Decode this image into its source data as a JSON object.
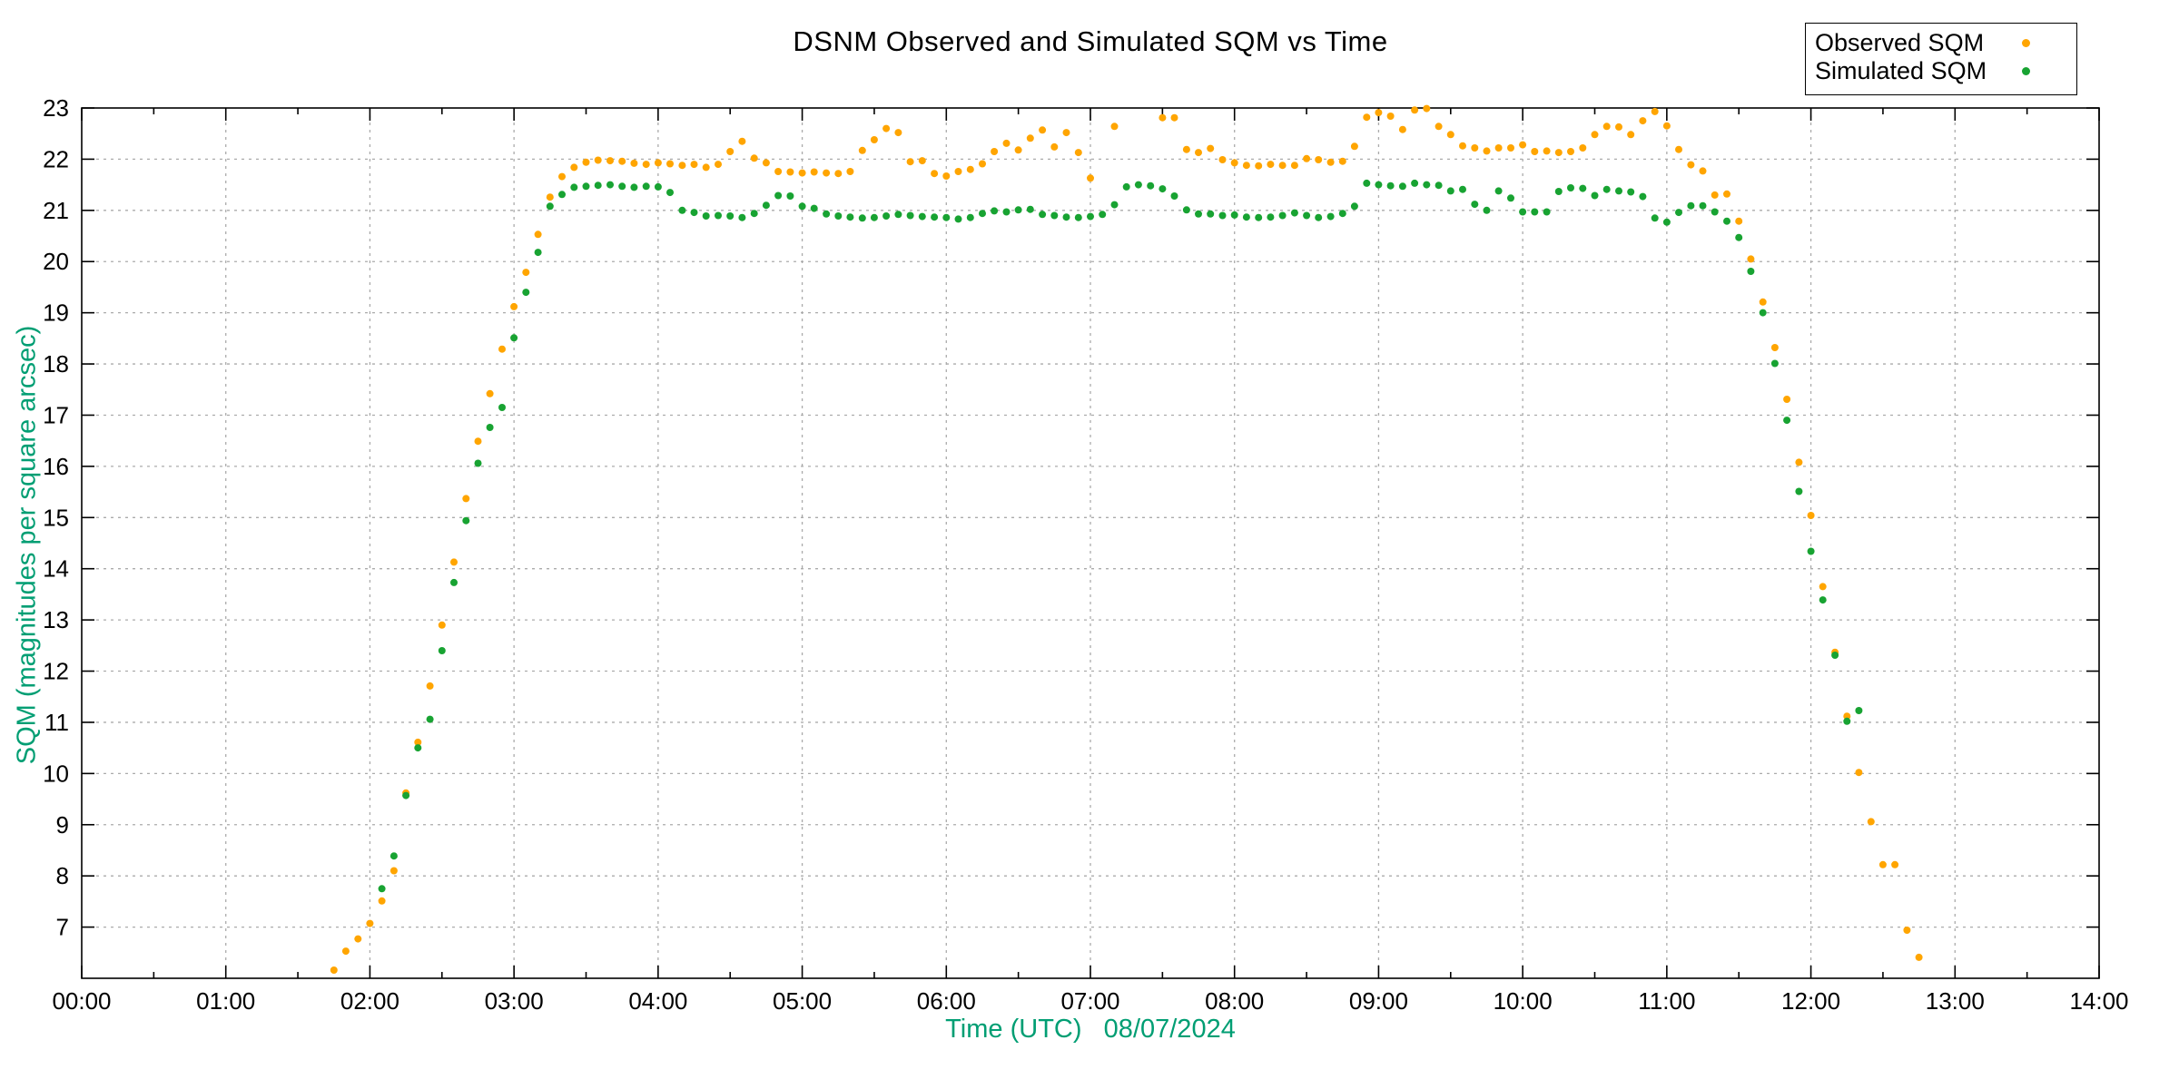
{
  "title": "DSNM Observed and Simulated SQM vs Time",
  "axes": {
    "x_label": "Time (UTC)   08/07/2024",
    "y_label": "SQM (magnitudes per square arcsec)",
    "label_color": "#009E73",
    "x_tick_labels": [
      "00:00",
      "01:00",
      "02:00",
      "03:00",
      "04:00",
      "05:00",
      "06:00",
      "07:00",
      "08:00",
      "09:00",
      "10:00",
      "11:00",
      "12:00",
      "13:00",
      "14:00"
    ],
    "y_tick_labels": [
      7,
      8,
      9,
      10,
      11,
      12,
      13,
      14,
      15,
      16,
      17,
      18,
      19,
      20,
      21,
      22,
      23
    ]
  },
  "legend": {
    "entries": [
      {
        "label": "Observed SQM",
        "color": "#FFA500"
      },
      {
        "label": "Simulated SQM",
        "color": "#18A332"
      }
    ]
  },
  "chart_data": {
    "type": "scatter",
    "title": "DSNM Observed and Simulated SQM vs Time",
    "xlabel": "Time (UTC)   08/07/2024",
    "ylabel": "SQM (magnitudes per square arcsec)",
    "xlim": [
      0,
      14
    ],
    "ylim": [
      6,
      23
    ],
    "x_unit": "hours UTC",
    "grid": true,
    "legend_position": "top-right",
    "grid_color": "#ababab",
    "marker_radius": 4,
    "x_major_tick_hours": 1,
    "x_minor_tick_hours": 0.5,
    "series": [
      {
        "name": "Observed SQM",
        "color": "#FFA500",
        "points": [
          [
            1.75,
            6.16
          ],
          [
            1.833,
            6.53
          ],
          [
            1.917,
            6.77
          ],
          [
            2.0,
            7.07
          ],
          [
            2.083,
            7.51
          ],
          [
            2.167,
            8.1
          ],
          [
            2.25,
            9.62
          ],
          [
            2.333,
            10.61
          ],
          [
            2.417,
            11.71
          ],
          [
            2.5,
            12.9
          ],
          [
            2.583,
            14.13
          ],
          [
            2.667,
            15.37
          ],
          [
            2.75,
            16.49
          ],
          [
            2.833,
            17.42
          ],
          [
            2.917,
            18.29
          ],
          [
            3.0,
            19.12
          ],
          [
            3.083,
            19.79
          ],
          [
            3.167,
            20.53
          ],
          [
            3.25,
            21.26
          ],
          [
            3.333,
            21.66
          ],
          [
            3.417,
            21.84
          ],
          [
            3.5,
            21.94
          ],
          [
            3.583,
            21.98
          ],
          [
            3.667,
            21.97
          ],
          [
            3.75,
            21.96
          ],
          [
            3.833,
            21.92
          ],
          [
            3.917,
            21.9
          ],
          [
            4.0,
            21.93
          ],
          [
            4.083,
            21.91
          ],
          [
            4.167,
            21.88
          ],
          [
            4.25,
            21.9
          ],
          [
            4.333,
            21.84
          ],
          [
            4.417,
            21.9
          ],
          [
            4.5,
            22.15
          ],
          [
            4.583,
            22.35
          ],
          [
            4.667,
            22.02
          ],
          [
            4.75,
            21.93
          ],
          [
            4.833,
            21.76
          ],
          [
            4.917,
            21.75
          ],
          [
            5.0,
            21.73
          ],
          [
            5.083,
            21.75
          ],
          [
            5.167,
            21.73
          ],
          [
            5.25,
            21.72
          ],
          [
            5.333,
            21.76
          ],
          [
            5.417,
            22.17
          ],
          [
            5.5,
            22.38
          ],
          [
            5.583,
            22.6
          ],
          [
            5.667,
            22.52
          ],
          [
            5.75,
            21.95
          ],
          [
            5.833,
            21.97
          ],
          [
            5.917,
            21.72
          ],
          [
            6.0,
            21.67
          ],
          [
            6.083,
            21.76
          ],
          [
            6.167,
            21.8
          ],
          [
            6.25,
            21.91
          ],
          [
            6.333,
            22.15
          ],
          [
            6.417,
            22.31
          ],
          [
            6.5,
            22.18
          ],
          [
            6.583,
            22.41
          ],
          [
            6.667,
            22.57
          ],
          [
            6.75,
            22.24
          ],
          [
            6.833,
            22.52
          ],
          [
            6.917,
            22.13
          ],
          [
            7.0,
            21.63
          ],
          [
            7.167,
            22.64
          ],
          [
            7.5,
            22.81
          ],
          [
            7.583,
            22.81
          ],
          [
            7.667,
            22.19
          ],
          [
            7.75,
            22.13
          ],
          [
            7.833,
            22.21
          ],
          [
            7.917,
            21.99
          ],
          [
            8.0,
            21.93
          ],
          [
            8.083,
            21.88
          ],
          [
            8.167,
            21.87
          ],
          [
            8.25,
            21.9
          ],
          [
            8.333,
            21.88
          ],
          [
            8.417,
            21.88
          ],
          [
            8.5,
            22.01
          ],
          [
            8.583,
            21.99
          ],
          [
            8.667,
            21.94
          ],
          [
            8.75,
            21.96
          ],
          [
            8.833,
            22.25
          ],
          [
            8.917,
            22.82
          ],
          [
            9.0,
            22.91
          ],
          [
            9.083,
            22.84
          ],
          [
            9.167,
            22.58
          ],
          [
            9.25,
            22.96
          ],
          [
            9.333,
            22.99
          ],
          [
            9.417,
            22.64
          ],
          [
            9.5,
            22.48
          ],
          [
            9.583,
            22.26
          ],
          [
            9.667,
            22.22
          ],
          [
            9.75,
            22.16
          ],
          [
            9.833,
            22.22
          ],
          [
            9.917,
            22.22
          ],
          [
            10.0,
            22.28
          ],
          [
            10.083,
            22.15
          ],
          [
            10.167,
            22.16
          ],
          [
            10.25,
            22.13
          ],
          [
            10.333,
            22.15
          ],
          [
            10.417,
            22.22
          ],
          [
            10.5,
            22.48
          ],
          [
            10.583,
            22.64
          ],
          [
            10.667,
            22.63
          ],
          [
            10.75,
            22.48
          ],
          [
            10.833,
            22.75
          ],
          [
            10.917,
            22.93
          ],
          [
            11.0,
            22.65
          ],
          [
            11.083,
            22.19
          ],
          [
            11.167,
            21.89
          ],
          [
            11.25,
            21.77
          ],
          [
            11.333,
            21.3
          ],
          [
            11.417,
            21.32
          ],
          [
            11.5,
            20.79
          ],
          [
            11.583,
            20.05
          ],
          [
            11.667,
            19.21
          ],
          [
            11.75,
            18.32
          ],
          [
            11.833,
            17.31
          ],
          [
            11.917,
            16.08
          ],
          [
            12.0,
            15.04
          ],
          [
            12.083,
            13.65
          ],
          [
            12.167,
            12.37
          ],
          [
            12.25,
            11.12
          ],
          [
            12.333,
            10.02
          ],
          [
            12.417,
            9.06
          ],
          [
            12.5,
            8.22
          ],
          [
            12.583,
            8.22
          ],
          [
            12.667,
            6.94
          ],
          [
            12.75,
            6.41
          ]
        ]
      },
      {
        "name": "Simulated SQM",
        "color": "#18A332",
        "points": [
          [
            2.083,
            7.75
          ],
          [
            2.167,
            8.39
          ],
          [
            2.25,
            9.57
          ],
          [
            2.333,
            10.5
          ],
          [
            2.417,
            11.06
          ],
          [
            2.5,
            12.4
          ],
          [
            2.583,
            13.73
          ],
          [
            2.667,
            14.94
          ],
          [
            2.75,
            16.06
          ],
          [
            2.833,
            16.76
          ],
          [
            2.917,
            17.15
          ],
          [
            3.0,
            18.51
          ],
          [
            3.083,
            19.4
          ],
          [
            3.167,
            20.18
          ],
          [
            3.25,
            21.08
          ],
          [
            3.333,
            21.31
          ],
          [
            3.417,
            21.45
          ],
          [
            3.5,
            21.47
          ],
          [
            3.583,
            21.49
          ],
          [
            3.667,
            21.5
          ],
          [
            3.75,
            21.47
          ],
          [
            3.833,
            21.45
          ],
          [
            3.917,
            21.47
          ],
          [
            4.0,
            21.46
          ],
          [
            4.083,
            21.35
          ],
          [
            4.167,
            21.0
          ],
          [
            4.25,
            20.96
          ],
          [
            4.333,
            20.89
          ],
          [
            4.417,
            20.9
          ],
          [
            4.5,
            20.89
          ],
          [
            4.583,
            20.86
          ],
          [
            4.667,
            20.94
          ],
          [
            4.75,
            21.1
          ],
          [
            4.833,
            21.29
          ],
          [
            4.917,
            21.28
          ],
          [
            5.0,
            21.08
          ],
          [
            5.083,
            21.04
          ],
          [
            5.167,
            20.93
          ],
          [
            5.25,
            20.89
          ],
          [
            5.333,
            20.87
          ],
          [
            5.417,
            20.85
          ],
          [
            5.5,
            20.86
          ],
          [
            5.583,
            20.89
          ],
          [
            5.667,
            20.92
          ],
          [
            5.75,
            20.9
          ],
          [
            5.833,
            20.88
          ],
          [
            5.917,
            20.87
          ],
          [
            6.0,
            20.86
          ],
          [
            6.083,
            20.83
          ],
          [
            6.167,
            20.86
          ],
          [
            6.25,
            20.94
          ],
          [
            6.333,
            20.99
          ],
          [
            6.417,
            20.97
          ],
          [
            6.5,
            21.01
          ],
          [
            6.583,
            21.02
          ],
          [
            6.667,
            20.92
          ],
          [
            6.75,
            20.9
          ],
          [
            6.833,
            20.87
          ],
          [
            6.917,
            20.86
          ],
          [
            7.0,
            20.88
          ],
          [
            7.083,
            20.92
          ],
          [
            7.167,
            21.11
          ],
          [
            7.25,
            21.46
          ],
          [
            7.333,
            21.5
          ],
          [
            7.417,
            21.48
          ],
          [
            7.5,
            21.42
          ],
          [
            7.583,
            21.28
          ],
          [
            7.667,
            21.01
          ],
          [
            7.75,
            20.93
          ],
          [
            7.833,
            20.93
          ],
          [
            7.917,
            20.9
          ],
          [
            8.0,
            20.91
          ],
          [
            8.083,
            20.87
          ],
          [
            8.167,
            20.86
          ],
          [
            8.25,
            20.87
          ],
          [
            8.333,
            20.9
          ],
          [
            8.417,
            20.95
          ],
          [
            8.5,
            20.9
          ],
          [
            8.583,
            20.86
          ],
          [
            8.667,
            20.88
          ],
          [
            8.75,
            20.94
          ],
          [
            8.833,
            21.08
          ],
          [
            8.917,
            21.53
          ],
          [
            9.0,
            21.5
          ],
          [
            9.083,
            21.48
          ],
          [
            9.167,
            21.47
          ],
          [
            9.25,
            21.53
          ],
          [
            9.333,
            21.5
          ],
          [
            9.417,
            21.49
          ],
          [
            9.5,
            21.38
          ],
          [
            9.583,
            21.41
          ],
          [
            9.667,
            21.12
          ],
          [
            9.75,
            21.0
          ],
          [
            9.833,
            21.38
          ],
          [
            9.917,
            21.24
          ],
          [
            10.0,
            20.97
          ],
          [
            10.083,
            20.97
          ],
          [
            10.167,
            20.97
          ],
          [
            10.25,
            21.37
          ],
          [
            10.333,
            21.44
          ],
          [
            10.417,
            21.43
          ],
          [
            10.5,
            21.29
          ],
          [
            10.583,
            21.41
          ],
          [
            10.667,
            21.38
          ],
          [
            10.75,
            21.36
          ],
          [
            10.833,
            21.27
          ],
          [
            10.917,
            20.85
          ],
          [
            11.0,
            20.77
          ],
          [
            11.083,
            20.96
          ],
          [
            11.167,
            21.09
          ],
          [
            11.25,
            21.09
          ],
          [
            11.333,
            20.97
          ],
          [
            11.417,
            20.79
          ],
          [
            11.5,
            20.47
          ],
          [
            11.583,
            19.81
          ],
          [
            11.667,
            19.0
          ],
          [
            11.75,
            18.01
          ],
          [
            11.833,
            16.9
          ],
          [
            11.917,
            15.51
          ],
          [
            12.0,
            14.34
          ],
          [
            12.083,
            13.39
          ],
          [
            12.167,
            12.31
          ],
          [
            12.25,
            11.02
          ],
          [
            12.333,
            11.23
          ]
        ]
      }
    ]
  }
}
